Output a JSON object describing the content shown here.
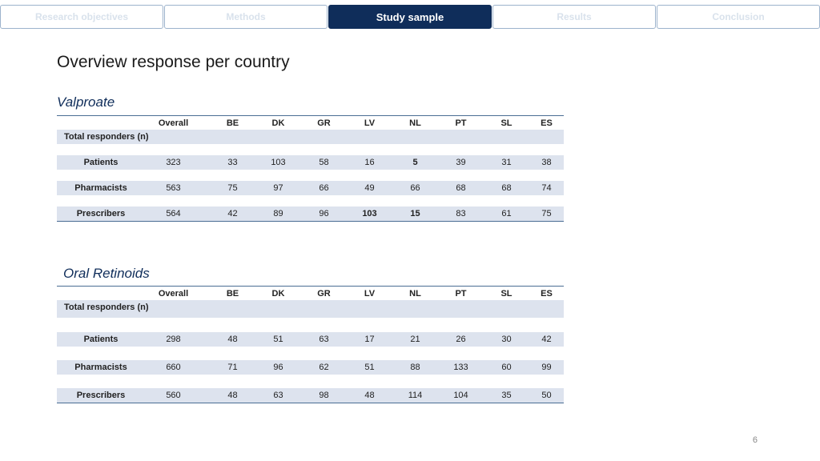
{
  "nav": {
    "tabs": [
      {
        "label": "Research objectives"
      },
      {
        "label": "Methods"
      },
      {
        "label": "Study sample"
      },
      {
        "label": "Results"
      },
      {
        "label": "Conclusion"
      }
    ]
  },
  "page_title": "Overview response per country",
  "columns": [
    "Overall",
    "BE",
    "DK",
    "GR",
    "LV",
    "NL",
    "PT",
    "SL",
    "ES"
  ],
  "total_label": "Total responders (n)",
  "valproate": {
    "title": "Valproate",
    "rows": [
      {
        "label": "Patients",
        "values": [
          "323",
          "33",
          "103",
          "58",
          "16",
          "5",
          "39",
          "31",
          "38"
        ]
      },
      {
        "label": "Pharmacists",
        "values": [
          "563",
          "75",
          "97",
          "66",
          "49",
          "66",
          "68",
          "68",
          "74"
        ]
      },
      {
        "label": "Prescribers",
        "values": [
          "564",
          "42",
          "89",
          "96",
          "103",
          "15",
          "83",
          "61",
          "75"
        ]
      }
    ]
  },
  "retinoids": {
    "title": "Oral Retinoids",
    "rows": [
      {
        "label": "Patients",
        "values": [
          "298",
          "48",
          "51",
          "63",
          "17",
          "21",
          "26",
          "30",
          "42"
        ]
      },
      {
        "label": "Pharmacists",
        "values": [
          "660",
          "71",
          "96",
          "62",
          "51",
          "88",
          "133",
          "60",
          "99"
        ]
      },
      {
        "label": "Prescribers",
        "values": [
          "560",
          "48",
          "63",
          "98",
          "48",
          "114",
          "104",
          "35",
          "50"
        ]
      }
    ]
  },
  "page_number": "6"
}
